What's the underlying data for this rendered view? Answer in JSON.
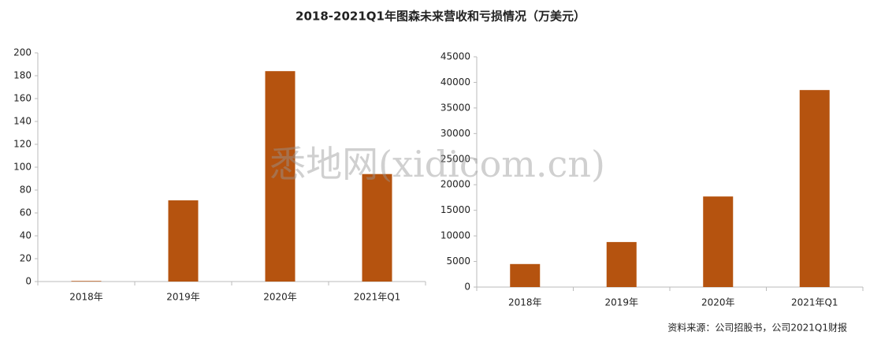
{
  "title": "2018-2021Q1年图森未来营收和亏损情况（万美元）",
  "source": "资料来源：公司招股书，公司2021Q1财报",
  "watermark": "悉地网(xidicom.cn)",
  "chart_data": [
    {
      "type": "bar",
      "categories": [
        "2018年",
        "2019年",
        "2020年",
        "2021年Q1"
      ],
      "values": [
        0.5,
        71,
        184,
        94
      ],
      "color": "#b5530f",
      "ylim": [
        0,
        200
      ],
      "yticks": [
        0,
        20,
        40,
        60,
        80,
        100,
        120,
        140,
        160,
        180,
        200
      ]
    },
    {
      "type": "bar",
      "categories": [
        "2018年",
        "2019年",
        "2020年",
        "2021年Q1"
      ],
      "values": [
        4500,
        8800,
        17700,
        38500
      ],
      "color": "#b5530f",
      "ylim": [
        0,
        45000
      ],
      "yticks": [
        0,
        5000,
        10000,
        15000,
        20000,
        25000,
        30000,
        35000,
        40000,
        45000
      ]
    }
  ]
}
